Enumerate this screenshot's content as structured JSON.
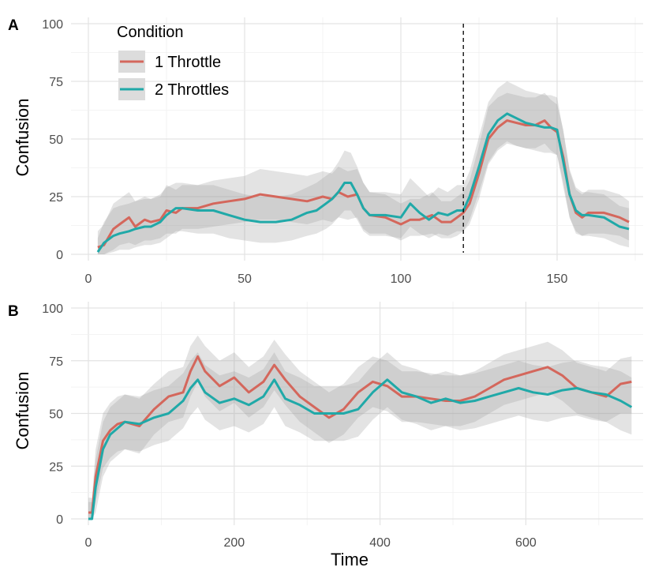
{
  "legend": {
    "title": "Condition",
    "entries": [
      "1 Throttle",
      "2 Throttles"
    ],
    "placement": "top-left inside panel A"
  },
  "chart_data": [
    {
      "type": "line",
      "panel": "A",
      "xlabel": "",
      "ylabel": "Confusion",
      "xlim": [
        0,
        175
      ],
      "ylim": [
        0,
        100
      ],
      "x_ticks": [
        0,
        50,
        100,
        150
      ],
      "y_ticks": [
        0,
        25,
        50,
        75,
        100
      ],
      "grid": true,
      "vline_x": 120,
      "colors": {
        "1 Throttle": "#d4675c",
        "2 Throttles": "#20a9a8"
      },
      "series": [
        {
          "name": "1 Throttle",
          "x": [
            3,
            5,
            8,
            10,
            13,
            15,
            18,
            20,
            23,
            25,
            28,
            30,
            35,
            40,
            45,
            50,
            55,
            60,
            65,
            70,
            75,
            78,
            80,
            83,
            86,
            88,
            90,
            95,
            100,
            103,
            106,
            110,
            113,
            116,
            118,
            120,
            122,
            125,
            128,
            131,
            134,
            137,
            140,
            143,
            146,
            148,
            150,
            152,
            154,
            156,
            158,
            160,
            165,
            170,
            173
          ],
          "y": [
            3,
            4,
            11,
            13,
            16,
            12,
            15,
            14,
            15,
            19,
            18,
            20,
            20,
            22,
            23,
            24,
            26,
            25,
            24,
            23,
            25,
            24,
            27,
            25,
            26,
            20,
            17,
            16,
            13,
            15,
            15,
            17,
            14,
            14,
            16,
            18,
            22,
            35,
            50,
            55,
            58,
            57,
            56,
            56,
            58,
            55,
            53,
            42,
            26,
            18,
            16,
            18,
            18,
            16,
            14
          ],
          "lower": [
            0,
            0,
            2,
            4,
            5,
            4,
            6,
            6,
            7,
            9,
            9,
            11,
            11,
            12,
            13,
            14,
            15,
            15,
            14,
            13,
            15,
            14,
            16,
            15,
            16,
            11,
            9,
            9,
            6,
            8,
            8,
            9,
            7,
            7,
            8,
            10,
            13,
            24,
            39,
            45,
            48,
            47,
            46,
            46,
            48,
            45,
            43,
            31,
            16,
            9,
            8,
            9,
            9,
            8,
            6
          ],
          "upper": [
            10,
            13,
            22,
            24,
            27,
            23,
            25,
            24,
            25,
            30,
            28,
            30,
            30,
            32,
            33,
            34,
            37,
            36,
            35,
            34,
            36,
            35,
            38,
            36,
            37,
            31,
            27,
            26,
            22,
            24,
            24,
            27,
            23,
            23,
            25,
            27,
            32,
            47,
            64,
            68,
            70,
            69,
            68,
            68,
            70,
            67,
            65,
            54,
            36,
            28,
            26,
            28,
            28,
            26,
            23
          ]
        },
        {
          "name": "2 Throttles",
          "x": [
            3,
            5,
            8,
            10,
            13,
            15,
            18,
            20,
            23,
            25,
            28,
            30,
            35,
            40,
            45,
            50,
            55,
            60,
            65,
            70,
            73,
            76,
            78,
            80,
            82,
            84,
            86,
            88,
            90,
            95,
            100,
            103,
            106,
            109,
            112,
            115,
            118,
            120,
            122,
            125,
            128,
            131,
            134,
            137,
            140,
            143,
            146,
            148,
            150,
            152,
            154,
            156,
            158,
            160,
            165,
            170,
            173
          ],
          "y": [
            1,
            5,
            8,
            9,
            10,
            11,
            12,
            12,
            14,
            17,
            20,
            20,
            19,
            19,
            17,
            15,
            14,
            14,
            15,
            18,
            19,
            22,
            24,
            27,
            31,
            31,
            26,
            20,
            17,
            17,
            16,
            22,
            18,
            15,
            18,
            17,
            19,
            19,
            25,
            38,
            52,
            58,
            61,
            59,
            57,
            56,
            55,
            55,
            54,
            40,
            26,
            19,
            17,
            17,
            16,
            12,
            11
          ],
          "lower": [
            0,
            0,
            1,
            2,
            2,
            3,
            4,
            4,
            5,
            7,
            10,
            10,
            9,
            9,
            7,
            6,
            5,
            5,
            6,
            8,
            9,
            11,
            13,
            16,
            19,
            19,
            15,
            10,
            8,
            8,
            7,
            12,
            9,
            7,
            9,
            8,
            10,
            10,
            15,
            27,
            40,
            46,
            49,
            47,
            46,
            45,
            44,
            44,
            43,
            29,
            16,
            10,
            8,
            8,
            7,
            4,
            3
          ],
          "upper": [
            7,
            14,
            20,
            21,
            22,
            23,
            24,
            24,
            26,
            29,
            31,
            31,
            30,
            30,
            28,
            26,
            25,
            25,
            26,
            29,
            31,
            34,
            36,
            40,
            45,
            44,
            38,
            31,
            27,
            27,
            26,
            33,
            29,
            25,
            29,
            27,
            30,
            30,
            36,
            51,
            66,
            72,
            75,
            73,
            71,
            70,
            69,
            69,
            68,
            53,
            37,
            29,
            27,
            27,
            26,
            21,
            20
          ]
        }
      ]
    },
    {
      "type": "line",
      "panel": "B",
      "xlabel": "Time",
      "ylabel": "Confusion",
      "xlim": [
        0,
        750
      ],
      "ylim": [
        0,
        100
      ],
      "x_ticks": [
        0,
        200,
        400,
        600
      ],
      "y_ticks": [
        0,
        25,
        50,
        75,
        100
      ],
      "grid": true,
      "colors": {
        "1 Throttle": "#d4675c",
        "2 Throttles": "#20a9a8"
      },
      "series": [
        {
          "name": "1 Throttle",
          "x": [
            0,
            5,
            10,
            20,
            30,
            40,
            50,
            70,
            90,
            110,
            130,
            140,
            150,
            160,
            180,
            200,
            220,
            240,
            255,
            270,
            290,
            310,
            330,
            350,
            370,
            390,
            410,
            430,
            450,
            470,
            490,
            510,
            530,
            550,
            570,
            590,
            610,
            630,
            650,
            670,
            690,
            710,
            730,
            745
          ],
          "y": [
            3,
            3,
            20,
            37,
            42,
            45,
            46,
            44,
            52,
            58,
            60,
            70,
            77,
            70,
            63,
            67,
            60,
            65,
            73,
            66,
            58,
            53,
            48,
            52,
            60,
            65,
            63,
            58,
            58,
            57,
            56,
            56,
            58,
            62,
            66,
            68,
            70,
            72,
            68,
            62,
            60,
            58,
            64,
            65
          ],
          "lower": [
            0,
            0,
            8,
            24,
            29,
            32,
            33,
            31,
            40,
            46,
            48,
            58,
            65,
            58,
            51,
            55,
            48,
            53,
            61,
            54,
            46,
            41,
            36,
            40,
            48,
            53,
            51,
            46,
            46,
            45,
            44,
            44,
            46,
            50,
            54,
            56,
            58,
            60,
            56,
            50,
            48,
            46,
            50,
            50
          ],
          "upper": [
            10,
            10,
            33,
            50,
            55,
            58,
            59,
            57,
            64,
            70,
            72,
            82,
            87,
            82,
            75,
            79,
            72,
            77,
            85,
            78,
            70,
            65,
            60,
            64,
            72,
            77,
            75,
            70,
            70,
            69,
            68,
            68,
            70,
            74,
            78,
            80,
            82,
            84,
            80,
            74,
            72,
            70,
            76,
            77
          ]
        },
        {
          "name": "2 Throttles",
          "x": [
            0,
            5,
            10,
            20,
            30,
            40,
            50,
            70,
            90,
            110,
            130,
            140,
            150,
            160,
            180,
            200,
            220,
            240,
            255,
            270,
            290,
            310,
            330,
            350,
            370,
            390,
            410,
            430,
            450,
            470,
            490,
            510,
            530,
            550,
            570,
            590,
            610,
            630,
            650,
            670,
            690,
            710,
            730,
            745
          ],
          "y": [
            0,
            0,
            15,
            33,
            40,
            43,
            46,
            45,
            48,
            50,
            56,
            62,
            66,
            60,
            55,
            57,
            54,
            58,
            66,
            57,
            54,
            50,
            50,
            50,
            52,
            60,
            66,
            60,
            58,
            55,
            57,
            55,
            56,
            58,
            60,
            62,
            60,
            59,
            61,
            62,
            60,
            59,
            56,
            53
          ],
          "lower": [
            0,
            0,
            3,
            20,
            27,
            30,
            33,
            32,
            35,
            37,
            43,
            49,
            53,
            47,
            42,
            44,
            41,
            45,
            53,
            44,
            41,
            37,
            37,
            37,
            39,
            47,
            53,
            47,
            45,
            42,
            44,
            42,
            43,
            45,
            47,
            49,
            47,
            46,
            48,
            49,
            47,
            46,
            42,
            40
          ],
          "upper": [
            8,
            8,
            28,
            46,
            53,
            56,
            59,
            58,
            61,
            63,
            69,
            75,
            79,
            73,
            68,
            70,
            67,
            71,
            79,
            70,
            67,
            63,
            63,
            63,
            65,
            73,
            79,
            73,
            71,
            68,
            70,
            68,
            69,
            71,
            73,
            75,
            73,
            72,
            74,
            75,
            73,
            72,
            70,
            67
          ]
        }
      ]
    }
  ],
  "panel_tags": [
    "A",
    "B"
  ]
}
